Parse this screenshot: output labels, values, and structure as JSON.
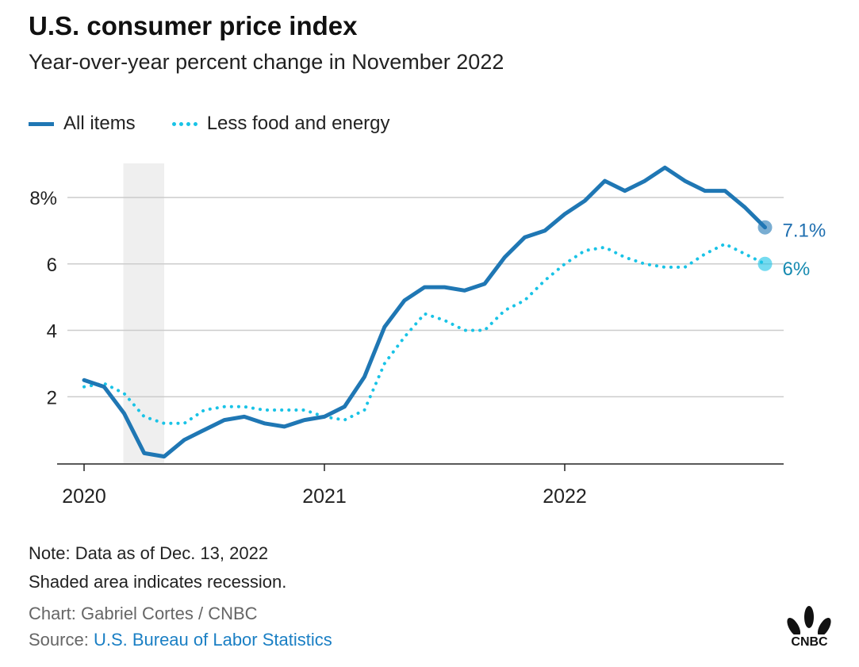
{
  "title": "U.S. consumer price index",
  "subtitle": "Year-over-year percent change in November 2022",
  "notes": {
    "note1": "Note: Data as of Dec. 13, 2022",
    "note2": "Shaded area indicates recession.",
    "credit": "Chart: Gabriel Cortes / CNBC",
    "source_label": "Source: ",
    "source_link": "U.S. Bureau of Labor Statistics"
  },
  "logo_text": "CNBC",
  "colors": {
    "all_items": "#1f77b4",
    "core": "#19c3e6",
    "recession": "#efefef",
    "grid": "#cccccc"
  },
  "chart_data": {
    "type": "line",
    "title": "U.S. consumer price index",
    "subtitle": "Year-over-year percent change in November 2022",
    "x_start": "2020-01",
    "x_end": "2022-11",
    "frequency": "monthly",
    "xticks": [
      "2020",
      "2021",
      "2022"
    ],
    "yticks": [
      {
        "value": 2,
        "label": "2"
      },
      {
        "value": 4,
        "label": "4"
      },
      {
        "value": 6,
        "label": "6"
      },
      {
        "value": 8,
        "label": "8%"
      }
    ],
    "ylim": [
      0,
      9.5
    ],
    "recession": {
      "start_month_index": 2,
      "end_month_index": 4
    },
    "legend_position": "top-left",
    "series": [
      {
        "name": "All items",
        "style": "solid",
        "end_label": "7.1%",
        "values": [
          2.5,
          2.3,
          1.5,
          0.3,
          0.2,
          0.7,
          1.0,
          1.3,
          1.4,
          1.2,
          1.1,
          1.3,
          1.4,
          1.7,
          2.6,
          4.1,
          4.9,
          5.3,
          5.3,
          5.2,
          5.4,
          6.2,
          6.8,
          7.0,
          7.5,
          7.9,
          8.5,
          8.2,
          8.5,
          8.9,
          8.5,
          8.2,
          8.2,
          7.7,
          7.1
        ]
      },
      {
        "name": "Less food and energy",
        "style": "dotted",
        "end_label": "6%",
        "values": [
          2.3,
          2.4,
          2.1,
          1.4,
          1.2,
          1.2,
          1.6,
          1.7,
          1.7,
          1.6,
          1.6,
          1.6,
          1.4,
          1.3,
          1.6,
          3.0,
          3.8,
          4.5,
          4.3,
          4.0,
          4.0,
          4.6,
          4.9,
          5.5,
          6.0,
          6.4,
          6.5,
          6.2,
          6.0,
          5.9,
          5.9,
          6.3,
          6.6,
          6.3,
          6.0
        ]
      }
    ]
  }
}
